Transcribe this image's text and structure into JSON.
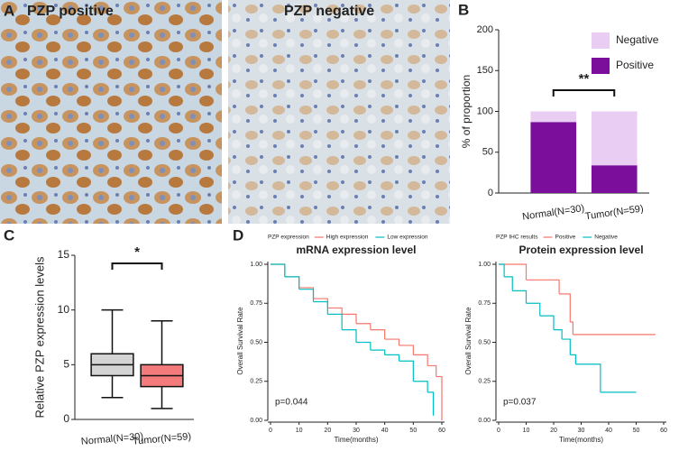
{
  "panel_labels": [
    "A",
    "B",
    "C",
    "D"
  ],
  "images": [
    {
      "label": "PZP positive"
    },
    {
      "label": "PZP negative"
    }
  ],
  "chart_data": [
    {
      "type": "bar",
      "stacked": true,
      "ylabel": "% of proportion",
      "categories": [
        "Normal(N=30)",
        "Tumor(N=59)"
      ],
      "series": [
        {
          "name": "Positive",
          "color": "#7b0f9b",
          "values": [
            87,
            34
          ]
        },
        {
          "name": "Negative",
          "color": "#eacdf3",
          "values": [
            13,
            66
          ]
        }
      ],
      "ylim": [
        0,
        200
      ],
      "yticks": [
        0,
        50,
        100,
        150,
        200
      ],
      "annotation": "**"
    },
    {
      "type": "box",
      "ylabel": "Relative PZP expression levels",
      "categories": [
        "Normal(N=30)",
        "Tumor(N=59)"
      ],
      "colors": [
        "#d4d4d4",
        "#f47b7b"
      ],
      "boxes": [
        {
          "min": 2,
          "q1": 4,
          "median": 5,
          "q3": 6,
          "max": 10
        },
        {
          "min": 1,
          "q1": 3,
          "median": 4,
          "q3": 5,
          "max": 9
        }
      ],
      "ylim": [
        0,
        15
      ],
      "yticks": [
        0,
        5,
        10,
        15
      ],
      "annotation": "*"
    },
    {
      "type": "step",
      "title": "mRNA expression level",
      "legend_title": "PZP expression",
      "xlabel": "Time(months)",
      "ylabel": "Overall Survival Rate",
      "annotation": "p=0.044",
      "xlim": [
        0,
        60
      ],
      "xticks": [
        0,
        10,
        20,
        30,
        40,
        50,
        60
      ],
      "ylim": [
        0,
        1
      ],
      "yticks": [
        {
          "value": 0,
          "label": "0.00"
        },
        {
          "value": 0.25,
          "label": "0.25"
        },
        {
          "value": 0.5,
          "label": "0.50"
        },
        {
          "value": 0.75,
          "label": "0.75"
        },
        {
          "value": 1,
          "label": "1.00"
        }
      ],
      "series": [
        {
          "name": "High expression",
          "color": "#f8766d",
          "x": [
            0,
            5,
            10,
            15,
            20,
            25,
            30,
            35,
            40,
            45,
            50,
            55,
            58,
            60
          ],
          "values": [
            1,
            0.92,
            0.85,
            0.78,
            0.72,
            0.68,
            0.62,
            0.58,
            0.52,
            0.48,
            0.42,
            0.35,
            0.28,
            0
          ]
        },
        {
          "name": "Low expression",
          "color": "#00bfc4",
          "x": [
            0,
            5,
            10,
            15,
            20,
            25,
            30,
            35,
            40,
            45,
            50,
            55,
            57
          ],
          "values": [
            1,
            0.92,
            0.84,
            0.76,
            0.68,
            0.58,
            0.5,
            0.45,
            0.42,
            0.38,
            0.25,
            0.18,
            0.03
          ]
        }
      ]
    },
    {
      "type": "step",
      "title": "Protein expression level",
      "legend_title": "PZP IHC results",
      "xlabel": "Time(months)",
      "ylabel": "Overall Survival Rate",
      "annotation": "p=0.037",
      "xlim": [
        0,
        60
      ],
      "xticks": [
        0,
        10,
        20,
        30,
        40,
        50,
        60
      ],
      "ylim": [
        0,
        1
      ],
      "yticks": [
        {
          "value": 0,
          "label": "0.00"
        },
        {
          "value": 0.25,
          "label": "0.25"
        },
        {
          "value": 0.5,
          "label": "0.50"
        },
        {
          "value": 0.75,
          "label": "0.75"
        },
        {
          "value": 1,
          "label": "1.00"
        }
      ],
      "series": [
        {
          "name": "Positive",
          "color": "#f8766d",
          "x": [
            0,
            10,
            20,
            22,
            26,
            27,
            57
          ],
          "values": [
            1,
            0.9,
            0.9,
            0.81,
            0.63,
            0.55,
            0.55
          ]
        },
        {
          "name": "Negative",
          "color": "#00bfc4",
          "x": [
            0,
            2,
            5,
            10,
            15,
            20,
            23,
            26,
            28,
            37,
            50
          ],
          "values": [
            1,
            0.92,
            0.83,
            0.75,
            0.67,
            0.58,
            0.52,
            0.42,
            0.36,
            0.18,
            0.18
          ]
        }
      ]
    }
  ]
}
